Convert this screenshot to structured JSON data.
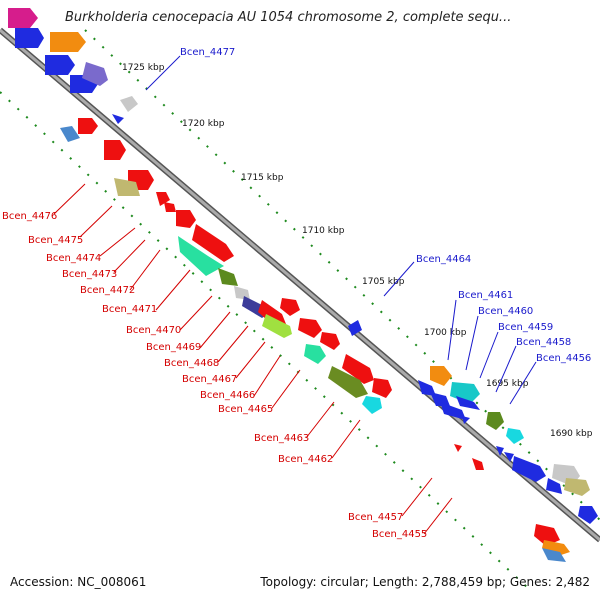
{
  "title": "Burkholderia cenocepacia AU 1054 chromosome 2, complete sequ...",
  "footer": {
    "accession": "Accession: NC_008061",
    "topology": "Topology: circular; Length: 2,788,459 bp; Genes: 2,482"
  },
  "kbp_labels": [
    "1725 kbp",
    "1720 kbp",
    "1715 kbp",
    "1710 kbp",
    "1705 kbp",
    "1700 kbp",
    "1695 kbp",
    "1690 kbp"
  ],
  "gene_labels_red": [
    "Bcen_4476",
    "Bcen_4475",
    "Bcen_4474",
    "Bcen_4473",
    "Bcen_4472",
    "Bcen_4471",
    "Bcen_4470",
    "Bcen_4469",
    "Bcen_4468",
    "Bcen_4467",
    "Bcen_4466",
    "Bcen_4465",
    "Bcen_4463",
    "Bcen_4462",
    "Bcen_4457",
    "Bcen_4455"
  ],
  "gene_labels_blue": [
    "Bcen_4477",
    "Bcen_4464",
    "Bcen_4461",
    "Bcen_4460",
    "Bcen_4459",
    "Bcen_4458",
    "Bcen_4456"
  ],
  "colors": {
    "red": "#ee0000",
    "blue": "#0000ee",
    "backbone": "#888888",
    "ticks": "#228822"
  }
}
